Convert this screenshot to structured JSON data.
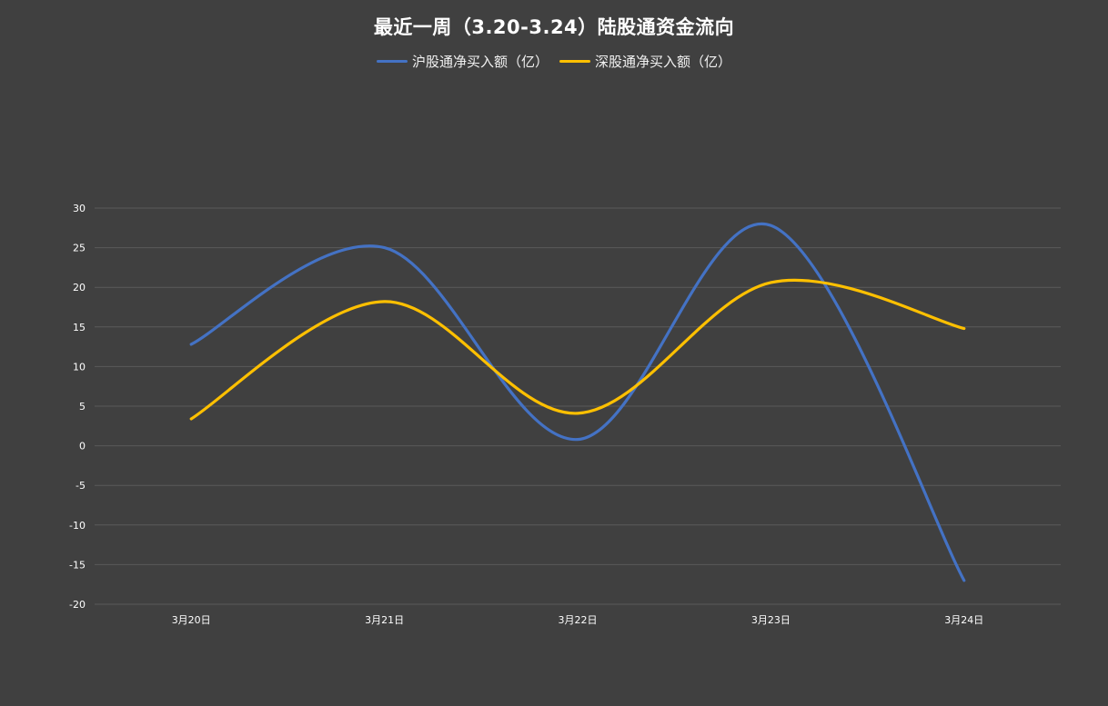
{
  "chart_data": {
    "type": "line",
    "title": "最近一周（3.20-3.24）陆股通资金流向",
    "categories": [
      "3月20日",
      "3月21日",
      "3月22日",
      "3月23日",
      "3月24日"
    ],
    "series": [
      {
        "name": "沪股通净买入额（亿）",
        "color": "#4472c4",
        "values": [
          12.8,
          25.0,
          0.8,
          27.8,
          -17.0
        ]
      },
      {
        "name": "深股通净买入额（亿）",
        "color": "#ffc000",
        "values": [
          3.4,
          18.2,
          4.1,
          20.6,
          14.8
        ]
      }
    ],
    "ylim": [
      -20,
      30
    ],
    "yticks": [
      -20,
      -15,
      -10,
      -5,
      0,
      5,
      10,
      15,
      20,
      25,
      30
    ],
    "smooth": true,
    "grid": true,
    "legend": "top-center",
    "colors": {
      "background": "#404040",
      "grid": "#5a5a5a",
      "text": "#ffffff"
    }
  }
}
